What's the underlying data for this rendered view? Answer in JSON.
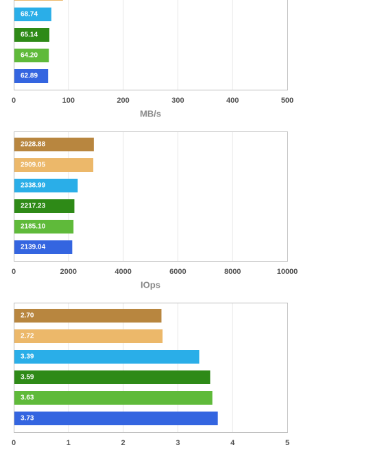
{
  "chart_data": [
    {
      "type": "bar",
      "orientation": "horizontal",
      "xlabel": "MB/s",
      "values": [
        90,
        68.74,
        65.14,
        64.2,
        62.89
      ],
      "value_labels": [
        null,
        "68.74",
        "65.14",
        "64.20",
        "62.89"
      ],
      "colors": [
        "#ecb86a",
        "#2aaee8",
        "#2e8a17",
        "#5fba3a",
        "#3465e0"
      ],
      "xlim": [
        0,
        500
      ],
      "xticks": [
        0,
        100,
        200,
        300,
        400,
        500
      ],
      "grid": true
    },
    {
      "type": "bar",
      "orientation": "horizontal",
      "xlabel": "IOps",
      "values": [
        2928.88,
        2909.05,
        2338.99,
        2217.23,
        2185.1,
        2139.04
      ],
      "value_labels": [
        "2928.88",
        "2909.05",
        "2338.99",
        "2217.23",
        "2185.10",
        "2139.04"
      ],
      "colors": [
        "#b8863f",
        "#ecb86a",
        "#2aaee8",
        "#2e8a17",
        "#5fba3a",
        "#3465e0"
      ],
      "xlim": [
        0,
        10000
      ],
      "xticks": [
        0,
        2000,
        4000,
        6000,
        8000,
        10000
      ],
      "grid": true
    },
    {
      "type": "bar",
      "orientation": "horizontal",
      "values": [
        2.7,
        2.72,
        3.39,
        3.59,
        3.63,
        3.73
      ],
      "value_labels": [
        "2.70",
        "2.72",
        "3.39",
        "3.59",
        "3.63",
        "3.73"
      ],
      "colors": [
        "#b8863f",
        "#ecb86a",
        "#2aaee8",
        "#2e8a17",
        "#5fba3a",
        "#3465e0"
      ],
      "xlim": [
        0,
        5
      ],
      "xticks": [
        0,
        1,
        2,
        3,
        4,
        5
      ],
      "grid": true
    }
  ]
}
